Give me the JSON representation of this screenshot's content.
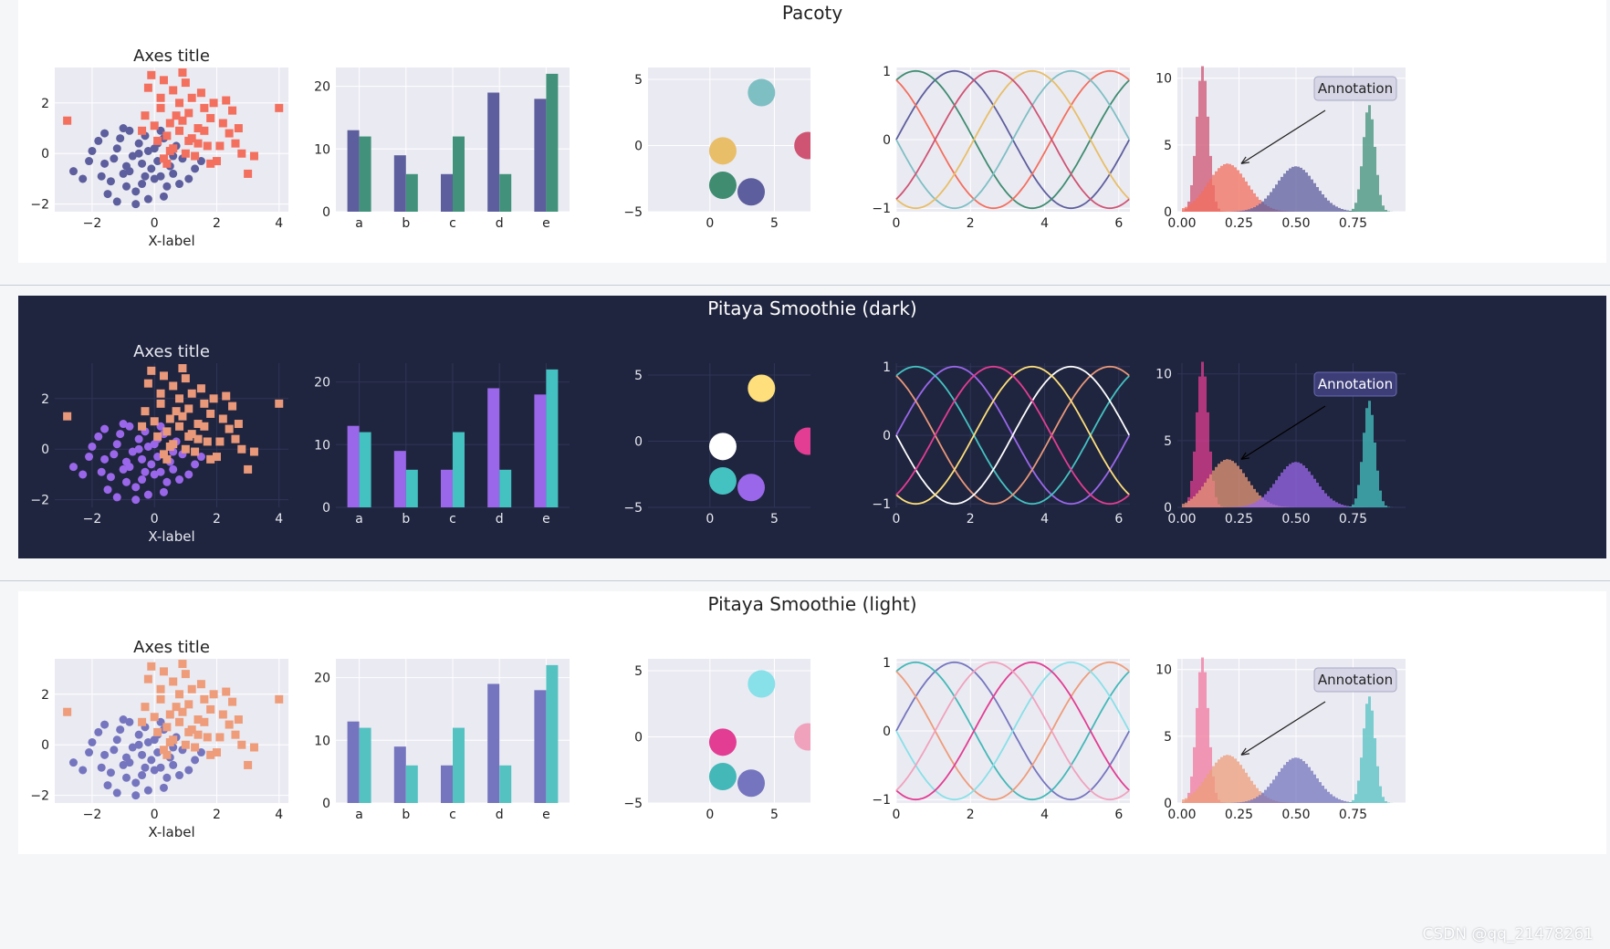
{
  "themes": [
    {
      "title": "Pacoty",
      "bg": "#ffffff",
      "plot_bg": "#eaeaf2",
      "grid": "#ffffff",
      "text": "#222222",
      "panel_text": "#222222",
      "ann_bg": "#d6d6e6",
      "ann_border": "#a9a9c6",
      "ann_text": "#222222",
      "arrow": "#222222",
      "scatter_colors": [
        "#5d5e9d",
        "#f36f5e"
      ],
      "bar_colors": [
        "#5d5e9d",
        "#42917a"
      ],
      "circle_colors": [
        "#7ebfc4",
        "#e8be68",
        "#cf5474",
        "#3f8c70",
        "#5d5e9d"
      ],
      "line_colors": [
        "#5d5e9d",
        "#3f8c70",
        "#f36f5e",
        "#7ebfc4",
        "#e8be68",
        "#cf5474"
      ],
      "hist_colors": [
        "#cf5474",
        "#f36f5e",
        "#5d5e9d",
        "#42917a"
      ]
    },
    {
      "title": "Pitaya Smoothie (dark)",
      "bg": "#20253f",
      "plot_bg": "#20253f",
      "grid": "#2e3556",
      "text": "#e6e8f0",
      "panel_text": "#ffffff",
      "ann_bg": "#3d3e78",
      "ann_border": "#6a6bb0",
      "ann_text": "#ffffff",
      "arrow": "#000000",
      "scatter_colors": [
        "#9a67ea",
        "#e9987a"
      ],
      "bar_colors": [
        "#9a67ea",
        "#44c2c2"
      ],
      "circle_colors": [
        "#fedf7b",
        "#ffffff",
        "#e23d93",
        "#44c2c2",
        "#9a67ea"
      ],
      "line_colors": [
        "#9a67ea",
        "#44c2c2",
        "#e9987a",
        "#ffffff",
        "#fedf7b",
        "#e23d93"
      ],
      "hist_colors": [
        "#e23d93",
        "#e9987a",
        "#9a67ea",
        "#44c2c2"
      ]
    },
    {
      "title": "Pitaya Smoothie (light)",
      "bg": "#ffffff",
      "plot_bg": "#eaeaf2",
      "grid": "#ffffff",
      "text": "#222222",
      "panel_text": "#222222",
      "ann_bg": "#d6d6e6",
      "ann_border": "#a9a9c6",
      "ann_text": "#222222",
      "arrow": "#222222",
      "scatter_colors": [
        "#7575bf",
        "#ee9c7a"
      ],
      "bar_colors": [
        "#7575bf",
        "#55c2c2"
      ],
      "circle_colors": [
        "#88e0e8",
        "#e23d93",
        "#f0a2bd",
        "#44b8b8",
        "#7575bf"
      ],
      "line_colors": [
        "#7575bf",
        "#44b8b8",
        "#ee9c7a",
        "#88e0e8",
        "#e23d93",
        "#f0a2bd"
      ],
      "hist_colors": [
        "#f27a9f",
        "#ee9c7a",
        "#7575bf",
        "#55c2c2"
      ]
    }
  ],
  "chart_data": [
    {
      "type": "scatter",
      "title": "Axes title",
      "xlabel": "X-label",
      "ylabel": "",
      "xlim": [
        -3.2,
        4.3
      ],
      "ylim": [
        -2.3,
        3.4
      ],
      "xticks": [
        -2,
        0,
        2,
        4
      ],
      "yticks": [
        -2,
        0,
        2
      ],
      "series": [
        {
          "marker": "circle",
          "points": [
            [
              -1.2,
              0.2
            ],
            [
              -0.9,
              -0.5
            ],
            [
              -0.5,
              0.4
            ],
            [
              0.1,
              -0.3
            ],
            [
              -0.3,
              -0.9
            ],
            [
              0.6,
              -0.8
            ],
            [
              -1.6,
              -0.4
            ],
            [
              -0.8,
              0.9
            ],
            [
              0.3,
              0.6
            ],
            [
              -0.2,
              0.1
            ],
            [
              -1.4,
              -1.1
            ],
            [
              0.9,
              -0.2
            ],
            [
              -0.6,
              -1.5
            ],
            [
              0.4,
              -1.3
            ],
            [
              -2.1,
              -0.3
            ],
            [
              -1.0,
              -0.8
            ],
            [
              0.2,
              0.9
            ],
            [
              -0.4,
              -0.4
            ],
            [
              1.3,
              -0.6
            ],
            [
              -1.8,
              0.5
            ],
            [
              -0.7,
              -0.1
            ],
            [
              0.0,
              -1.0
            ],
            [
              -1.1,
              0.6
            ],
            [
              0.7,
              0.3
            ],
            [
              -0.2,
              -1.8
            ],
            [
              -1.5,
              -1.6
            ],
            [
              0.5,
              -0.5
            ],
            [
              -2.6,
              -0.7
            ],
            [
              -0.9,
              -1.3
            ],
            [
              0.1,
              0.4
            ],
            [
              -0.3,
              0.7
            ],
            [
              -1.3,
              -0.2
            ],
            [
              1.1,
              -1.0
            ],
            [
              -0.6,
              -2.0
            ],
            [
              0.3,
              -1.7
            ],
            [
              -1.7,
              -0.9
            ],
            [
              0.8,
              -1.2
            ],
            [
              -0.1,
              -0.6
            ],
            [
              -2.3,
              -1.0
            ],
            [
              -1.0,
              1.0
            ],
            [
              0.0,
              0.2
            ],
            [
              -0.8,
              -0.7
            ],
            [
              0.6,
              -0.1
            ],
            [
              -1.2,
              -1.9
            ],
            [
              -0.4,
              -1.2
            ],
            [
              1.5,
              -0.3
            ],
            [
              -2.0,
              0.1
            ],
            [
              -0.5,
              0.0
            ],
            [
              0.2,
              -0.9
            ],
            [
              -1.6,
              0.8
            ]
          ]
        },
        {
          "marker": "square",
          "points": [
            [
              0.5,
              1.2
            ],
            [
              1.2,
              0.6
            ],
            [
              0.8,
              2.0
            ],
            [
              1.6,
              0.9
            ],
            [
              0.2,
              1.8
            ],
            [
              2.1,
              0.3
            ],
            [
              1.0,
              0.0
            ],
            [
              0.4,
              0.7
            ],
            [
              1.8,
              1.4
            ],
            [
              -0.2,
              2.6
            ],
            [
              0.9,
              3.2
            ],
            [
              1.5,
              2.4
            ],
            [
              2.4,
              0.8
            ],
            [
              0.0,
              1.1
            ],
            [
              1.1,
              1.6
            ],
            [
              3.0,
              -0.8
            ],
            [
              2.6,
              0.4
            ],
            [
              -0.1,
              3.1
            ],
            [
              0.6,
              0.2
            ],
            [
              1.3,
              -0.1
            ],
            [
              1.9,
              2.0
            ],
            [
              0.3,
              2.9
            ],
            [
              2.8,
              0.0
            ],
            [
              4.0,
              1.8
            ],
            [
              -2.8,
              1.3
            ],
            [
              0.7,
              1.5
            ],
            [
              1.4,
              1.0
            ],
            [
              2.2,
              1.2
            ],
            [
              0.1,
              0.5
            ],
            [
              1.7,
              0.3
            ],
            [
              0.4,
              -0.4
            ],
            [
              2.0,
              -0.3
            ],
            [
              1.0,
              2.8
            ],
            [
              0.8,
              0.9
            ],
            [
              2.5,
              1.7
            ],
            [
              -0.3,
              1.5
            ],
            [
              1.2,
              2.2
            ],
            [
              3.2,
              -0.1
            ],
            [
              0.5,
              0.1
            ],
            [
              1.6,
              1.8
            ],
            [
              0.2,
              2.2
            ],
            [
              2.3,
              2.1
            ],
            [
              1.4,
              0.4
            ],
            [
              0.9,
              1.3
            ],
            [
              1.8,
              -0.4
            ],
            [
              -0.4,
              0.9
            ],
            [
              0.6,
              2.5
            ],
            [
              2.7,
              1.0
            ],
            [
              1.1,
              0.5
            ],
            [
              0.3,
              -0.2
            ]
          ]
        }
      ]
    },
    {
      "type": "bar",
      "categories": [
        "a",
        "b",
        "c",
        "d",
        "e"
      ],
      "ylim": [
        0,
        23
      ],
      "yticks": [
        0,
        10,
        20
      ],
      "series": [
        {
          "values": [
            13,
            9,
            6,
            19,
            18
          ]
        },
        {
          "values": [
            12,
            6,
            12,
            6,
            22
          ]
        }
      ]
    },
    {
      "type": "scatter",
      "xlim": [
        -4.8,
        7.8
      ],
      "ylim": [
        -5,
        5.9
      ],
      "xticks": [
        0,
        5
      ],
      "yticks": [
        -5,
        0,
        5
      ],
      "points": [
        [
          4,
          4
        ],
        [
          1,
          -0.4
        ],
        [
          7.6,
          0
        ],
        [
          1,
          -3
        ],
        [
          3.2,
          -3.5
        ]
      ],
      "sizes": [
        1,
        1,
        1,
        1,
        1
      ]
    },
    {
      "type": "line",
      "xlim": [
        0,
        6.3
      ],
      "ylim": [
        -1.05,
        1.05
      ],
      "xticks": [
        0,
        2,
        4,
        6
      ],
      "yticks": [
        -1,
        0,
        1
      ],
      "series_phase_offsets": [
        0,
        1.047,
        2.094,
        3.142,
        4.189,
        5.236
      ]
    },
    {
      "type": "area",
      "xlim": [
        -0.02,
        0.98
      ],
      "ylim": [
        0,
        10.8
      ],
      "xticks": [
        0.0,
        0.25,
        0.5,
        0.75
      ],
      "xtick_labels": [
        "0.00",
        "0.25",
        "0.50",
        "0.75"
      ],
      "yticks": [
        0,
        5,
        10
      ],
      "annotation": "Annotation",
      "series": [
        {
          "distribution": "peak",
          "center": 0.09,
          "peak": 10.9
        },
        {
          "distribution": "broad",
          "center": 0.2,
          "peak": 3.6
        },
        {
          "distribution": "broad",
          "center": 0.5,
          "peak": 3.4
        },
        {
          "distribution": "peak",
          "center": 0.82,
          "peak": 8.0
        }
      ]
    }
  ],
  "watermark": "CSDN @qq_21478261"
}
